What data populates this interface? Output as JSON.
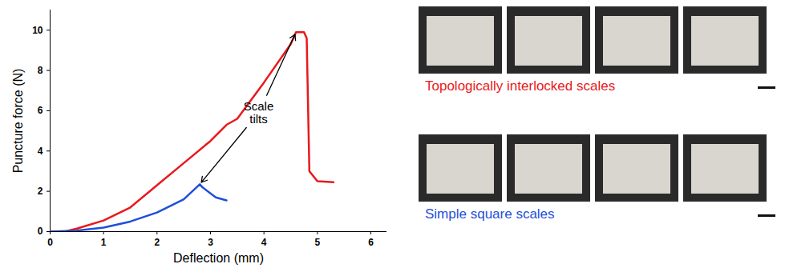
{
  "chart_data": {
    "type": "line",
    "xlabel": "Deflection (mm)",
    "ylabel": "Puncture force (N)",
    "xlim": [
      0,
      6.3
    ],
    "xticks": [
      0,
      1,
      2,
      3,
      4,
      5,
      6
    ],
    "ylim": [
      0,
      11
    ],
    "yticks": [
      0,
      2,
      4,
      6,
      8,
      10
    ],
    "grid": false,
    "series": [
      {
        "name": "Topologically interlocked scales",
        "color": "#e8191c",
        "x": [
          0,
          0.3,
          0.5,
          1,
          1.5,
          2,
          2.5,
          3,
          3.3,
          3.5,
          4,
          4.5,
          4.6,
          4.75,
          4.8,
          4.85,
          5,
          5.3
        ],
        "values": [
          0,
          0.02,
          0.15,
          0.55,
          1.2,
          2.3,
          3.4,
          4.5,
          5.3,
          5.6,
          7.4,
          9.3,
          9.9,
          9.9,
          9.6,
          3,
          2.5,
          2.45
        ]
      },
      {
        "name": "Simple square scales",
        "color": "#1f4fd8",
        "x": [
          0,
          0.5,
          1,
          1.5,
          2,
          2.5,
          2.8,
          2.85,
          3,
          3.1,
          3.3
        ],
        "values": [
          0,
          0.05,
          0.2,
          0.5,
          0.95,
          1.6,
          2.35,
          2.2,
          1.9,
          1.7,
          1.55
        ]
      }
    ],
    "annotations": [
      {
        "text": "Scale tilts",
        "x": 3.9,
        "y": 5.9
      }
    ]
  }
}
